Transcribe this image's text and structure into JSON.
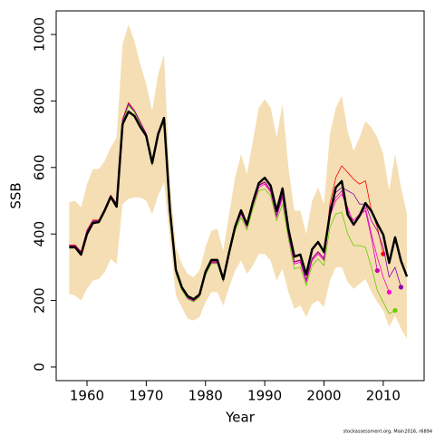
{
  "chart_data": {
    "type": "line",
    "x_label": "Year",
    "y_label": "SSB",
    "footer": "stockassessment.org, Main2016, r6894",
    "xlim": [
      1954.8,
      2016.9
    ],
    "ylim": [
      -41,
      1071
    ],
    "xticks": [
      1960,
      1970,
      1980,
      1990,
      2000,
      2010
    ],
    "yticks": [
      0,
      200,
      400,
      600,
      800,
      1000
    ],
    "x": [
      1957,
      1958,
      1959,
      1960,
      1961,
      1962,
      1963,
      1964,
      1965,
      1966,
      1967,
      1968,
      1969,
      1970,
      1971,
      1972,
      1973,
      1974,
      1975,
      1976,
      1977,
      1978,
      1979,
      1980,
      1981,
      1982,
      1983,
      1984,
      1985,
      1986,
      1987,
      1988,
      1989,
      1990,
      1991,
      1992,
      1993,
      1994,
      1995,
      1996,
      1997,
      1998,
      1999,
      2000,
      2001,
      2002,
      2003,
      2004,
      2005,
      2006,
      2007,
      2008,
      2009,
      2010,
      2011,
      2012,
      2013,
      2014
    ],
    "band": {
      "color": "#f5deb3",
      "upper": [
        495,
        500,
        480,
        550,
        595,
        595,
        620,
        660,
        690,
        970,
        1030,
        980,
        910,
        850,
        770,
        880,
        940,
        550,
        360,
        310,
        280,
        270,
        290,
        360,
        410,
        415,
        350,
        460,
        570,
        640,
        580,
        680,
        780,
        805,
        780,
        690,
        790,
        600,
        470,
        470,
        400,
        500,
        540,
        490,
        700,
        780,
        815,
        710,
        650,
        690,
        740,
        720,
        690,
        640,
        530,
        640,
        540,
        460
      ],
      "lower": [
        220,
        215,
        200,
        235,
        260,
        265,
        285,
        325,
        310,
        490,
        505,
        510,
        510,
        500,
        460,
        515,
        555,
        385,
        215,
        180,
        145,
        140,
        150,
        195,
        225,
        225,
        185,
        240,
        290,
        320,
        280,
        305,
        340,
        340,
        320,
        260,
        295,
        225,
        175,
        185,
        150,
        190,
        200,
        180,
        260,
        300,
        300,
        255,
        235,
        250,
        265,
        225,
        195,
        170,
        120,
        155,
        115,
        85
      ]
    },
    "series": [
      {
        "color": "#ff0000",
        "linewidth": 0.8,
        "values": [
          367,
          367,
          347,
          412,
          442,
          442,
          477,
          517,
          492,
          745,
          795,
          772,
          737,
          702,
          612,
          707,
          742,
          462,
          287,
          237,
          210,
          202,
          217,
          282,
          317,
          317,
          262,
          342,
          422,
          467,
          427,
          492,
          547,
          557,
          532,
          457,
          517,
          402,
          317,
          322,
          262,
          327,
          347,
          327,
          490,
          570,
          605,
          585,
          565,
          550,
          560,
          470,
          420,
          340,
          null,
          null,
          null,
          null
        ]
      },
      {
        "color": "#cc00aa",
        "linewidth": 0.8,
        "values": [
          365,
          365,
          345,
          410,
          440,
          440,
          475,
          515,
          490,
          740,
          790,
          770,
          735,
          700,
          610,
          705,
          740,
          460,
          285,
          235,
          208,
          200,
          215,
          280,
          315,
          315,
          260,
          340,
          420,
          465,
          425,
          490,
          545,
          555,
          530,
          455,
          515,
          400,
          315,
          320,
          260,
          325,
          345,
          325,
          470,
          510,
          530,
          470,
          440,
          460,
          470,
          390,
          290,
          null,
          null,
          null,
          null,
          null
        ]
      },
      {
        "color": "#ff00cc",
        "linewidth": 0.8,
        "values": [
          363,
          363,
          343,
          408,
          438,
          438,
          473,
          513,
          488,
          738,
          788,
          768,
          733,
          698,
          608,
          703,
          738,
          458,
          283,
          233,
          206,
          198,
          213,
          278,
          313,
          313,
          258,
          338,
          418,
          460,
          420,
          485,
          540,
          550,
          525,
          450,
          510,
          395,
          310,
          315,
          255,
          320,
          340,
          320,
          455,
          500,
          520,
          480,
          430,
          450,
          480,
          400,
          330,
          270,
          225,
          null,
          null,
          null
        ]
      },
      {
        "color": "#66cc00",
        "linewidth": 0.8,
        "values": [
          362,
          362,
          342,
          407,
          437,
          437,
          472,
          512,
          487,
          736,
          786,
          766,
          731,
          696,
          606,
          701,
          736,
          456,
          281,
          231,
          204,
          196,
          211,
          276,
          311,
          311,
          256,
          336,
          410,
          450,
          412,
          475,
          530,
          535,
          515,
          440,
          490,
          385,
          295,
          300,
          245,
          305,
          325,
          305,
          420,
          460,
          465,
          400,
          365,
          365,
          360,
          300,
          230,
          195,
          160,
          170,
          null,
          null
        ]
      },
      {
        "color": "#8800aa",
        "linewidth": 0.8,
        "values": [
          364,
          364,
          344,
          409,
          439,
          439,
          474,
          514,
          489,
          742,
          792,
          771,
          736,
          701,
          611,
          706,
          741,
          461,
          286,
          236,
          209,
          201,
          216,
          281,
          316,
          316,
          261,
          341,
          421,
          466,
          426,
          491,
          546,
          556,
          531,
          456,
          516,
          401,
          316,
          321,
          261,
          326,
          346,
          326,
          480,
          525,
          540,
          530,
          520,
          490,
          490,
          440,
          410,
          360,
          270,
          300,
          240,
          null
        ]
      },
      {
        "color": "#000000",
        "linewidth": 2.5,
        "values": [
          360,
          360,
          338,
          400,
          433,
          436,
          471,
          512,
          482,
          730,
          768,
          755,
          722,
          695,
          613,
          700,
          749,
          471,
          292,
          240,
          213,
          204,
          218,
          286,
          322,
          322,
          264,
          346,
          422,
          471,
          428,
          496,
          553,
          569,
          545,
          469,
          537,
          414,
          332,
          338,
          278,
          354,
          376,
          346,
          460,
          540,
          559,
          458,
          428,
          455,
          493,
          469,
          431,
          398,
          313,
          390,
          319,
          272
        ]
      }
    ]
  }
}
